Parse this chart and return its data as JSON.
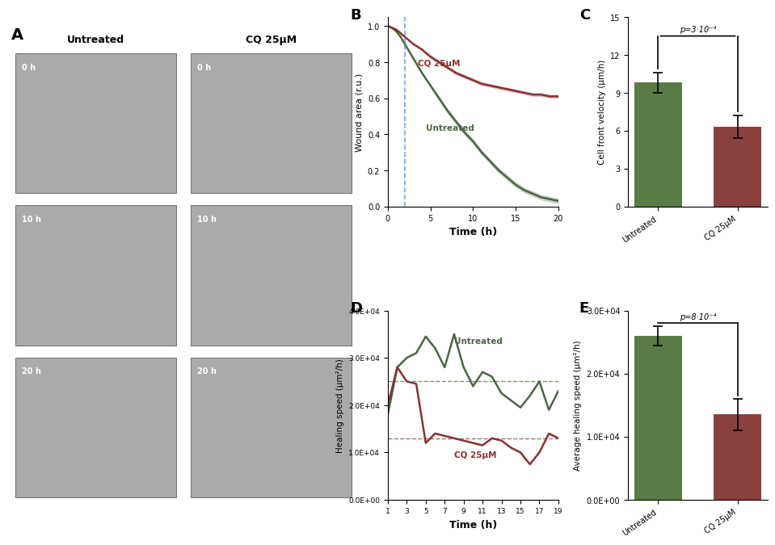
{
  "green_color": "#4a6741",
  "red_color": "#8b3030",
  "green_light": "#7aaa6a",
  "red_light": "#c47a7a",
  "bar_green": "#5a7a45",
  "bar_red": "#8b4040",
  "wound_time": [
    0,
    0.5,
    1,
    1.5,
    2,
    2.5,
    3,
    4,
    5,
    6,
    7,
    8,
    9,
    10,
    11,
    12,
    13,
    14,
    15,
    16,
    17,
    18,
    19,
    20
  ],
  "wound_untreated": [
    1.0,
    0.99,
    0.97,
    0.94,
    0.9,
    0.86,
    0.82,
    0.74,
    0.67,
    0.6,
    0.53,
    0.47,
    0.41,
    0.36,
    0.3,
    0.25,
    0.2,
    0.16,
    0.12,
    0.09,
    0.07,
    0.05,
    0.04,
    0.03
  ],
  "wound_untreated_upper": [
    1.0,
    0.995,
    0.975,
    0.945,
    0.905,
    0.865,
    0.825,
    0.75,
    0.68,
    0.615,
    0.545,
    0.485,
    0.425,
    0.375,
    0.315,
    0.265,
    0.215,
    0.175,
    0.135,
    0.105,
    0.085,
    0.065,
    0.055,
    0.045
  ],
  "wound_untreated_lower": [
    1.0,
    0.985,
    0.965,
    0.935,
    0.895,
    0.855,
    0.815,
    0.73,
    0.66,
    0.585,
    0.515,
    0.455,
    0.395,
    0.345,
    0.285,
    0.235,
    0.185,
    0.145,
    0.105,
    0.075,
    0.055,
    0.035,
    0.025,
    0.015
  ],
  "wound_cq": [
    1.0,
    0.99,
    0.98,
    0.96,
    0.94,
    0.92,
    0.9,
    0.87,
    0.83,
    0.8,
    0.77,
    0.74,
    0.72,
    0.7,
    0.68,
    0.67,
    0.66,
    0.65,
    0.64,
    0.63,
    0.62,
    0.62,
    0.61,
    0.61
  ],
  "wound_cq_upper": [
    1.0,
    0.993,
    0.983,
    0.963,
    0.943,
    0.923,
    0.903,
    0.875,
    0.84,
    0.81,
    0.78,
    0.75,
    0.73,
    0.71,
    0.69,
    0.68,
    0.67,
    0.66,
    0.65,
    0.64,
    0.63,
    0.63,
    0.62,
    0.62
  ],
  "wound_cq_lower": [
    1.0,
    0.987,
    0.977,
    0.957,
    0.937,
    0.917,
    0.897,
    0.865,
    0.82,
    0.79,
    0.76,
    0.73,
    0.71,
    0.69,
    0.67,
    0.66,
    0.65,
    0.64,
    0.63,
    0.62,
    0.61,
    0.61,
    0.6,
    0.6
  ],
  "vel_untreated": 9.8,
  "vel_untreated_err": 0.8,
  "vel_cq": 6.3,
  "vel_cq_err": 0.9,
  "heal_time": [
    1,
    2,
    3,
    4,
    5,
    6,
    7,
    8,
    9,
    10,
    11,
    12,
    13,
    14,
    15,
    16,
    17,
    18,
    19
  ],
  "heal_untreated": [
    18000,
    28000,
    30000,
    31000,
    34500,
    32000,
    28000,
    35000,
    28000,
    24000,
    27000,
    26000,
    22500,
    21000,
    19500,
    22000,
    25000,
    19000,
    23000
  ],
  "heal_cq": [
    20000,
    28000,
    25000,
    24500,
    12000,
    14000,
    13500,
    13000,
    12500,
    12000,
    11500,
    13000,
    12500,
    11000,
    10000,
    7500,
    10000,
    14000,
    13000
  ],
  "avg_heal_untreated": 26000,
  "avg_heal_untreated_err": 1500,
  "avg_heal_cq": 13500,
  "avg_heal_cq_err": 2500,
  "heal_untreated_mean": 25000,
  "heal_cq_mean": 13000,
  "dashed_vline_x": 2.0,
  "panel_A_label": "A",
  "panel_B_label": "B",
  "panel_C_label": "C",
  "panel_D_label": "D",
  "panel_E_label": "E",
  "title_untreated": "Untreated",
  "title_cq": "CQ 25μM",
  "B_xlabel": "Time (h)",
  "B_ylabel": "Wound area (r.u.)",
  "B_xlim": [
    0,
    20
  ],
  "B_ylim": [
    0,
    1.05
  ],
  "B_xticks": [
    0,
    5,
    10,
    15,
    20
  ],
  "C_ylabel": "Cell front velocity (μm/h)",
  "C_ylim": [
    0,
    15
  ],
  "C_yticks": [
    0,
    3,
    6,
    9,
    12,
    15
  ],
  "C_categories": [
    "Untreated",
    "CQ 25μM"
  ],
  "C_pval": "p=3·10⁻⁴",
  "D_xlabel": "Time (h)",
  "D_ylabel": "Healing speed (μm²/h)",
  "D_xlim": [
    1,
    19
  ],
  "D_ylim": [
    0,
    40000
  ],
  "D_yticks": [
    0,
    10000,
    20000,
    30000,
    40000
  ],
  "D_xticks": [
    1,
    3,
    5,
    7,
    9,
    11,
    13,
    15,
    17,
    19
  ],
  "E_ylabel": "Average healing speed (μm²/h)",
  "E_ylim": [
    0,
    30000
  ],
  "E_yticks": [
    0,
    10000,
    20000,
    30000
  ],
  "E_categories": [
    "Untreated",
    "CQ 25μM"
  ],
  "E_pval": "p=8·10⁻⁴",
  "img_placeholder_color": "#888888",
  "time_labels": [
    "0 h",
    "10 h",
    "20 h"
  ]
}
